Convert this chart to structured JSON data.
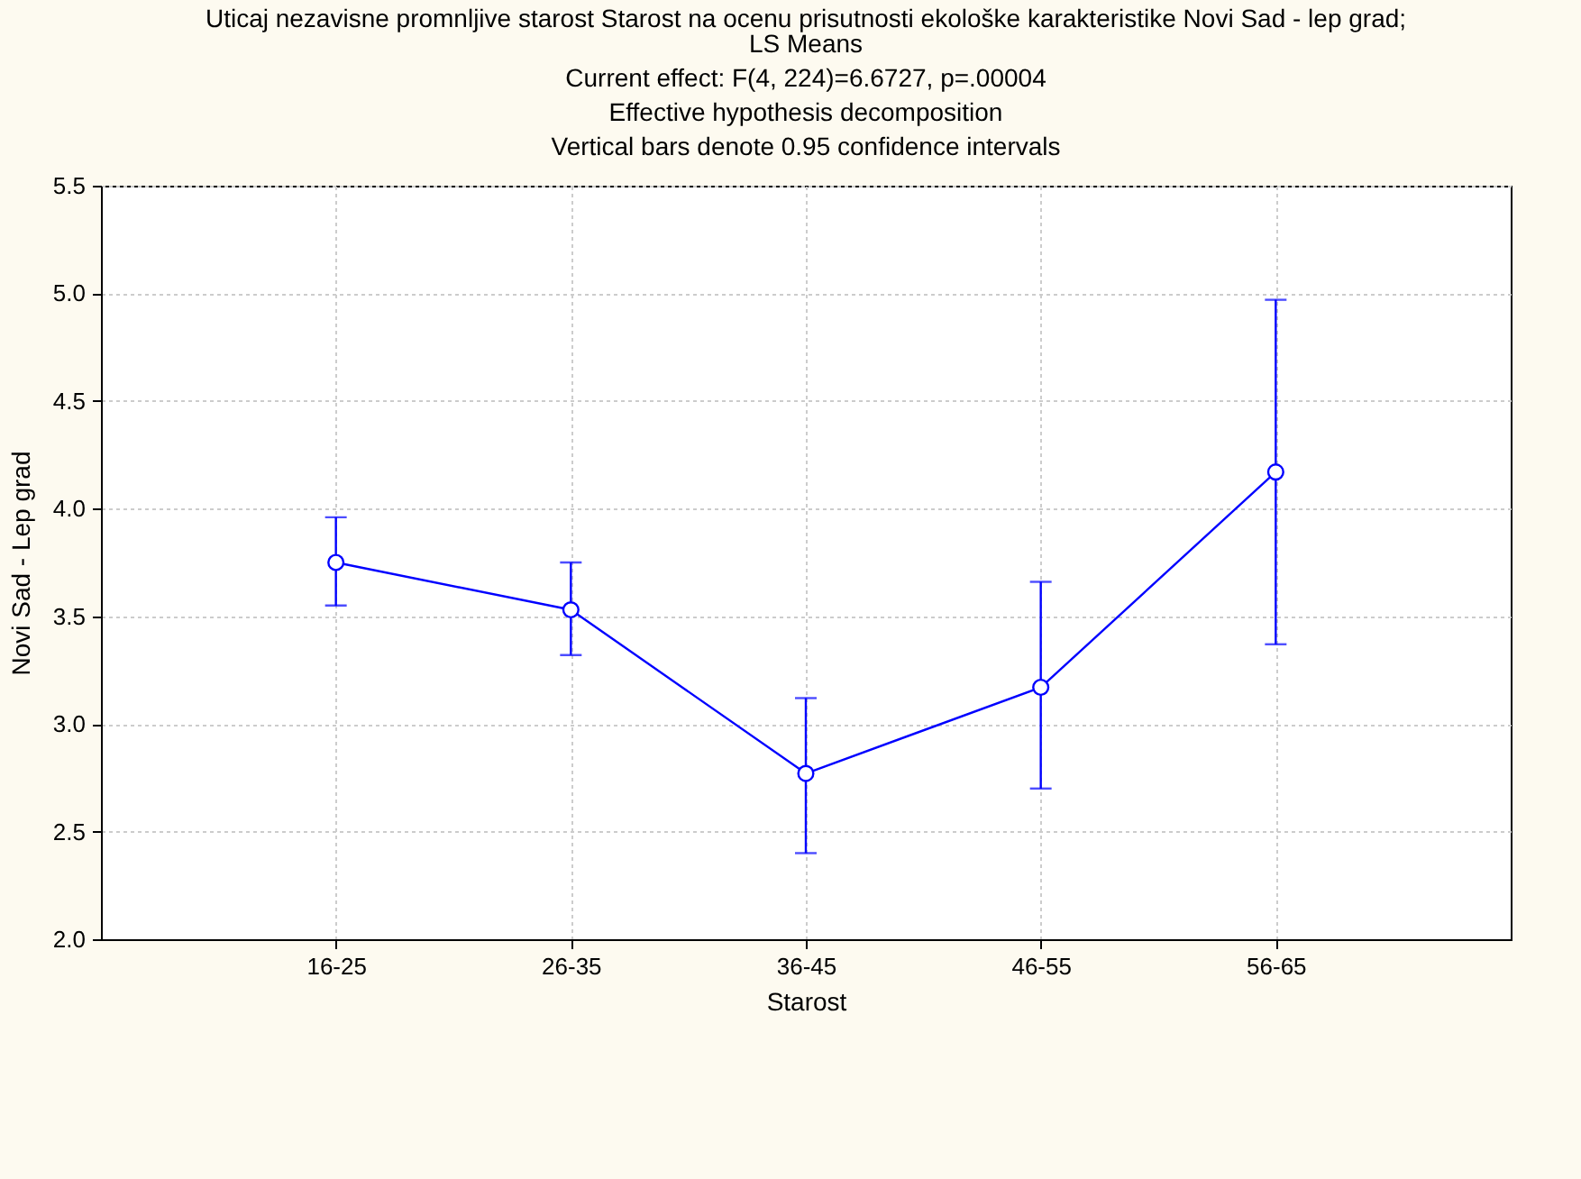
{
  "chart_data": {
    "type": "line",
    "title": "Uticaj nezavisne promnljive starost Starost na ocenu prisutnosti ekološke karakteristike Novi Sad - lep grad;",
    "subtitle": "LS Means\nCurrent effect: F(4, 224)=6.6727, p=.00004\nEffective hypothesis decomposition\nVertical bars denote 0.95 confidence intervals",
    "xlabel": "Starost",
    "ylabel": "Novi Sad - Lep grad",
    "categories": [
      "16-25",
      "26-35",
      "36-45",
      "46-55",
      "56-65"
    ],
    "series": [
      {
        "color": "#0000ff",
        "values": [
          3.75,
          3.53,
          2.77,
          3.17,
          4.17
        ],
        "errors": [
          [
            3.55,
            3.96
          ],
          [
            3.32,
            3.75
          ],
          [
            2.4,
            3.12
          ],
          [
            2.7,
            3.66
          ],
          [
            3.37,
            4.97
          ]
        ]
      }
    ],
    "ylim": [
      2.0,
      5.5
    ],
    "yticks": [
      {
        "value": 2.0,
        "label": "2.0"
      },
      {
        "value": 2.5,
        "label": "2.5"
      },
      {
        "value": 3.0,
        "label": "3.0"
      },
      {
        "value": 3.5,
        "label": "3.5"
      },
      {
        "value": 4.0,
        "label": "4.0"
      },
      {
        "value": 4.5,
        "label": "4.5"
      },
      {
        "value": 5.0,
        "label": "5.0"
      },
      {
        "value": 5.5,
        "label": "5.5"
      }
    ],
    "grid": true,
    "marker": "circle",
    "line_style": "solid"
  }
}
